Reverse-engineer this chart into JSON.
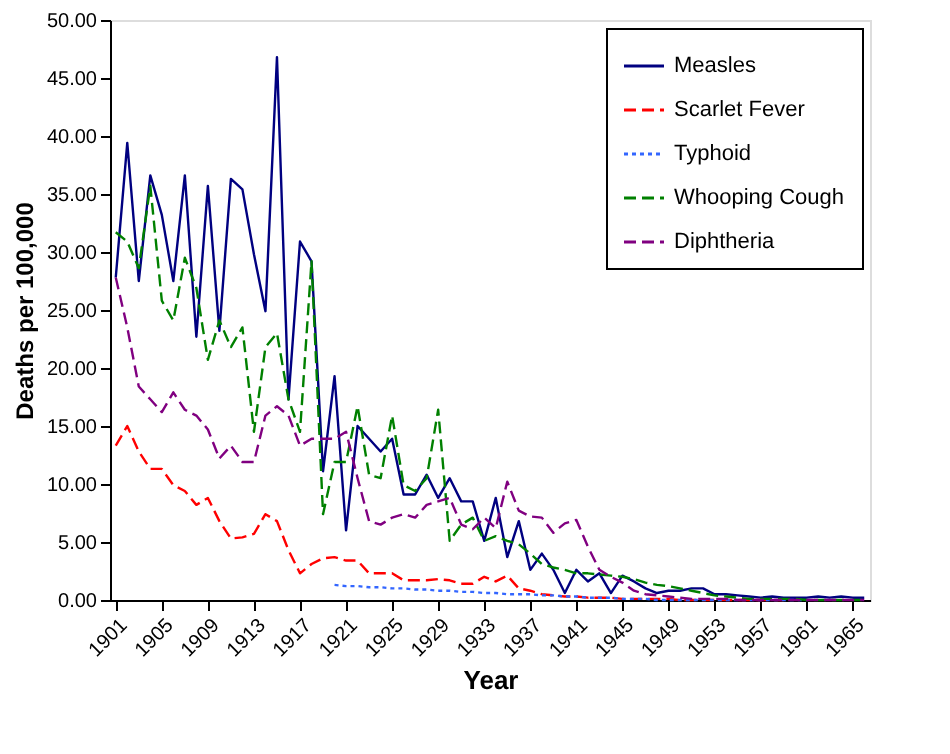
{
  "chart_data": {
    "type": "line",
    "xlabel": "Year",
    "ylabel": "Deaths per 100,000",
    "x": [
      1901,
      1902,
      1903,
      1904,
      1905,
      1906,
      1907,
      1908,
      1909,
      1910,
      1911,
      1912,
      1913,
      1914,
      1915,
      1916,
      1917,
      1918,
      1919,
      1920,
      1921,
      1922,
      1923,
      1924,
      1925,
      1926,
      1927,
      1928,
      1929,
      1930,
      1931,
      1932,
      1933,
      1934,
      1935,
      1936,
      1937,
      1938,
      1939,
      1940,
      1941,
      1942,
      1943,
      1944,
      1945,
      1946,
      1947,
      1948,
      1949,
      1950,
      1951,
      1952,
      1953,
      1954,
      1955,
      1956,
      1957,
      1958,
      1959,
      1960,
      1961,
      1962,
      1963,
      1964,
      1965,
      1966
    ],
    "xlim": [
      1900.5,
      1966.5
    ],
    "xticks": [
      1901,
      1905,
      1909,
      1913,
      1917,
      1921,
      1925,
      1929,
      1933,
      1937,
      1941,
      1945,
      1949,
      1953,
      1957,
      1961,
      1965
    ],
    "ylim": [
      0,
      50
    ],
    "yticks": [
      {
        "value": 0,
        "label": "0.00"
      },
      {
        "value": 5,
        "label": "5.00"
      },
      {
        "value": 10,
        "label": "10.00"
      },
      {
        "value": 15,
        "label": "15.00"
      },
      {
        "value": 20,
        "label": "20.00"
      },
      {
        "value": 25,
        "label": "25.00"
      },
      {
        "value": 30,
        "label": "30.00"
      },
      {
        "value": 35,
        "label": "35.00"
      },
      {
        "value": 40,
        "label": "40.00"
      },
      {
        "value": 45,
        "label": "45.00"
      },
      {
        "value": 50,
        "label": "50.00"
      }
    ],
    "grid": false,
    "legend": "top right",
    "marker": "none",
    "series": [
      {
        "name": "Measles",
        "color": "#000080",
        "line_style": "solid",
        "values": [
          27.8,
          39.4,
          27.5,
          36.6,
          33.2,
          27.5,
          36.6,
          22.7,
          35.7,
          23.2,
          36.3,
          35.4,
          29.8,
          24.9,
          46.8,
          17.3,
          30.9,
          29.2,
          11.1,
          19.3,
          6.0,
          15.0,
          13.9,
          12.8,
          13.9,
          9.1,
          9.1,
          10.8,
          8.8,
          10.5,
          8.5,
          8.5,
          5.1,
          8.8,
          3.7,
          6.8,
          2.6,
          4.0,
          2.6,
          0.6,
          2.6,
          1.6,
          2.3,
          0.6,
          2.1,
          1.6,
          1.0,
          0.6,
          0.8,
          0.8,
          1.0,
          1.0,
          0.5,
          0.5,
          0.4,
          0.3,
          0.2,
          0.3,
          0.2,
          0.2,
          0.2,
          0.3,
          0.2,
          0.3,
          0.2,
          0.2
        ]
      },
      {
        "name": "Scarlet Fever",
        "color": "#ff0000",
        "line_style": "dashed",
        "values": [
          13.3,
          15.0,
          12.8,
          11.3,
          11.3,
          9.9,
          9.4,
          8.2,
          8.8,
          6.8,
          5.3,
          5.4,
          5.7,
          7.4,
          6.8,
          4.3,
          2.3,
          3.1,
          3.6,
          3.7,
          3.4,
          3.4,
          2.3,
          2.3,
          2.3,
          1.7,
          1.7,
          1.7,
          1.8,
          1.7,
          1.4,
          1.4,
          2.0,
          1.6,
          2.1,
          1.0,
          0.8,
          0.5,
          0.4,
          0.3,
          0.3,
          0.2,
          0.2,
          0.2,
          0.1,
          0.1,
          0.1,
          0.1,
          0.1,
          0.0,
          0.0,
          0.0,
          0.0,
          0.0,
          0.0,
          0.0,
          0.0,
          0.0,
          0.0,
          null,
          null,
          null,
          null,
          null,
          null,
          null
        ]
      },
      {
        "name": "Typhoid",
        "color": "#3366ff",
        "line_style": "dotted",
        "values": [
          null,
          null,
          null,
          null,
          null,
          null,
          null,
          null,
          null,
          null,
          null,
          null,
          null,
          null,
          null,
          null,
          null,
          null,
          null,
          1.3,
          1.2,
          1.2,
          1.1,
          1.1,
          1.0,
          1.0,
          0.9,
          0.9,
          0.8,
          0.8,
          0.7,
          0.7,
          0.6,
          0.6,
          0.5,
          0.5,
          0.5,
          0.4,
          0.4,
          0.3,
          0.3,
          0.2,
          0.2,
          0.2,
          0.1,
          0.1,
          0.1,
          0.0,
          0.0,
          0.0,
          0.0,
          0.0,
          0.0,
          0.0,
          0.0,
          0.0,
          0.0,
          0.0,
          0.0,
          0.0,
          0.0,
          null,
          null,
          null,
          null,
          null
        ]
      },
      {
        "name": "Whooping Cough",
        "color": "#008000",
        "line_style": "dashed",
        "values": [
          31.7,
          30.9,
          28.6,
          35.7,
          25.8,
          24.1,
          29.5,
          26.9,
          20.7,
          24.1,
          21.8,
          23.5,
          14.5,
          21.8,
          23.0,
          17.3,
          14.5,
          29.2,
          7.4,
          11.9,
          11.9,
          16.7,
          10.8,
          10.5,
          15.9,
          9.9,
          9.4,
          10.5,
          16.4,
          5.1,
          6.5,
          7.1,
          5.1,
          5.5,
          5.1,
          4.8,
          4.0,
          3.1,
          2.8,
          2.6,
          2.3,
          2.3,
          2.2,
          2.1,
          2.0,
          1.8,
          1.5,
          1.3,
          1.2,
          1.0,
          0.8,
          0.6,
          0.4,
          0.3,
          0.2,
          0.1,
          0.1,
          0.1,
          0.1,
          0.1,
          0.0,
          0.0,
          0.0,
          0.0,
          0.0,
          0.0
        ]
      },
      {
        "name": "Diphtheria",
        "color": "#800080",
        "line_style": "dashed",
        "values": [
          27.8,
          23.5,
          18.4,
          17.3,
          16.2,
          17.9,
          16.4,
          15.9,
          14.7,
          12.2,
          13.3,
          11.9,
          11.9,
          15.9,
          16.7,
          15.9,
          13.3,
          13.9,
          13.9,
          13.9,
          14.5,
          10.5,
          6.8,
          6.5,
          7.1,
          7.4,
          7.1,
          8.2,
          8.5,
          8.8,
          6.5,
          6.1,
          7.1,
          6.2,
          10.2,
          7.7,
          7.2,
          7.1,
          5.8,
          6.6,
          6.9,
          4.6,
          2.6,
          2.0,
          1.5,
          0.8,
          0.5,
          0.4,
          0.3,
          0.2,
          0.1,
          0.1,
          0.1,
          0.1,
          0.0,
          0.0,
          0.0,
          0.0,
          0.0,
          0.0,
          0.0,
          0.0,
          0.0,
          0.0,
          0.0,
          0.0
        ]
      }
    ]
  }
}
